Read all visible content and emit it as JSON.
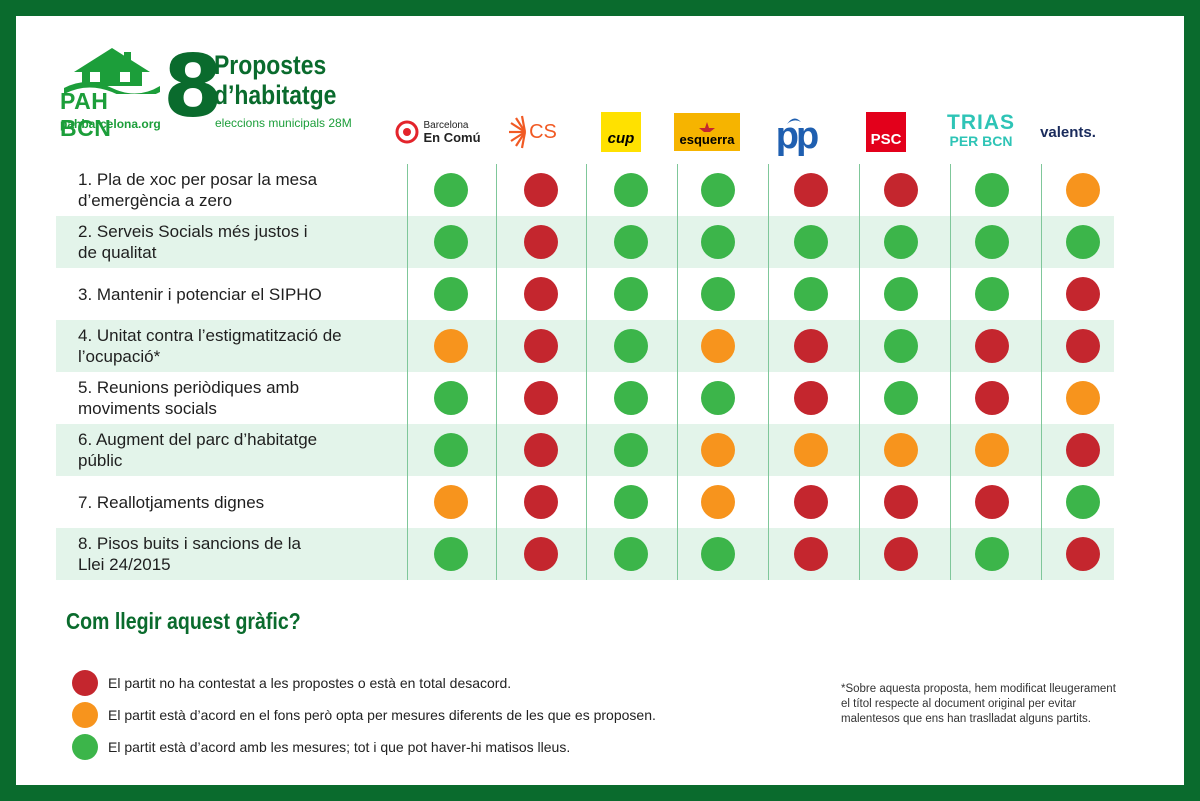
{
  "header": {
    "org_name": "PAH BCN",
    "org_url": "pahbarcelona.org",
    "big_number": "8",
    "title_line1": "Propostes",
    "title_line2": "d’habitatge",
    "subtitle": "eleccions municipals 28M"
  },
  "parties": [
    {
      "line1": "Barcelona",
      "line2": "En Comú"
    },
    {
      "label": "CS"
    },
    {
      "label": "cup",
      "color": "#ffe100"
    },
    {
      "label": "esquerra",
      "color": "#f6b400"
    },
    {
      "label": "pp",
      "color": "#1f5fb0"
    },
    {
      "label": "PSC",
      "color": "#e3001b"
    },
    {
      "line1": "TRIAS",
      "line2": "PER BCN",
      "color": "#2ec4b6"
    },
    {
      "label": "valents.",
      "color": "#1a2b5c"
    }
  ],
  "colors": {
    "red": "#c4262e",
    "orange": "#f7941d",
    "green": "#3cb54a"
  },
  "rows": [
    {
      "line1": "1. Pla de xoc per posar la mesa",
      "line2": "d’emergència a zero",
      "values": [
        "green",
        "red",
        "green",
        "green",
        "red",
        "red",
        "green",
        "orange"
      ]
    },
    {
      "line1": "2. Serveis Socials més justos i",
      "line2": "de qualitat",
      "values": [
        "green",
        "red",
        "green",
        "green",
        "green",
        "green",
        "green",
        "green"
      ]
    },
    {
      "line1": "3. Mantenir i potenciar el SIPHO",
      "line2": "",
      "values": [
        "green",
        "red",
        "green",
        "green",
        "green",
        "green",
        "green",
        "red"
      ]
    },
    {
      "line1": "4. Unitat contra l’estigmatització de",
      "line2": "l’ocupació*",
      "values": [
        "orange",
        "red",
        "green",
        "orange",
        "red",
        "green",
        "red",
        "red"
      ]
    },
    {
      "line1": "5. Reunions periòdiques amb",
      "line2": "moviments socials",
      "values": [
        "green",
        "red",
        "green",
        "green",
        "red",
        "green",
        "red",
        "orange"
      ]
    },
    {
      "line1": "6. Augment del parc d’habitatge",
      "line2": "públic",
      "values": [
        "green",
        "red",
        "green",
        "orange",
        "orange",
        "orange",
        "orange",
        "red"
      ]
    },
    {
      "line1": "7. Reallotjaments dignes",
      "line2": "",
      "values": [
        "orange",
        "red",
        "green",
        "orange",
        "red",
        "red",
        "red",
        "green"
      ]
    },
    {
      "line1": "8. Pisos buits i sancions de la",
      "line2": "Llei 24/2015",
      "values": [
        "green",
        "red",
        "green",
        "green",
        "red",
        "red",
        "green",
        "red"
      ]
    }
  ],
  "legend": {
    "title": "Com llegir aquest gràfic?",
    "items": [
      {
        "color": "red",
        "text": "El partit no ha contestat a les propostes o està en total desacord."
      },
      {
        "color": "orange",
        "text": "El partit està d’acord en el fons però opta per mesures diferents de les que es proposen."
      },
      {
        "color": "green",
        "text": "El partit està d’acord amb les mesures; tot i que pot haver-hi matisos lleus."
      }
    ]
  },
  "footnote": "*Sobre aquesta proposta, hem modificat lleugerament el títol respecte al document original per evitar malentesos que ens han traslladat alguns partits."
}
